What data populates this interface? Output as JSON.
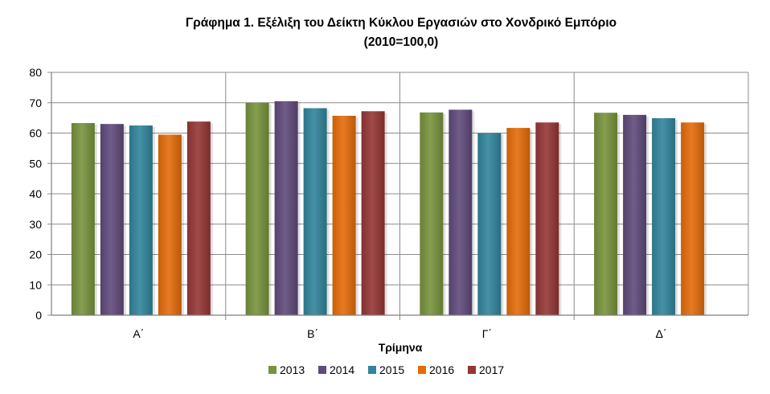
{
  "chart_data": {
    "type": "bar",
    "title": "Γράφημα 1.  Εξέλιξη του Δείκτη Κύκλου Εργασιών στο Χονδρικό Εμπόριο",
    "subtitle": "(2010=100,0)",
    "xlabel": "Τρίμηνα",
    "ylabel": "",
    "ylim": [
      0,
      80
    ],
    "yticks": [
      "0",
      "10",
      "20",
      "30",
      "40",
      "50",
      "60",
      "70",
      "80"
    ],
    "grid": true,
    "legend": "bottom",
    "categories": [
      "Α΄",
      "Β΄",
      "Γ΄",
      "Δ΄"
    ],
    "series": [
      {
        "name": "2013",
        "color": "#77933c",
        "values": [
          63.3,
          70.0,
          66.8,
          66.7
        ]
      },
      {
        "name": "2014",
        "color": "#604a7b",
        "values": [
          63.0,
          70.5,
          67.7,
          66.0
        ]
      },
      {
        "name": "2015",
        "color": "#31859c",
        "values": [
          62.5,
          68.2,
          60.0,
          64.9
        ]
      },
      {
        "name": "2016",
        "color": "#e46c0a",
        "values": [
          59.5,
          65.7,
          61.7,
          63.5
        ]
      },
      {
        "name": "2017",
        "color": "#953735",
        "values": [
          63.8,
          67.2,
          63.5,
          null
        ]
      }
    ]
  }
}
